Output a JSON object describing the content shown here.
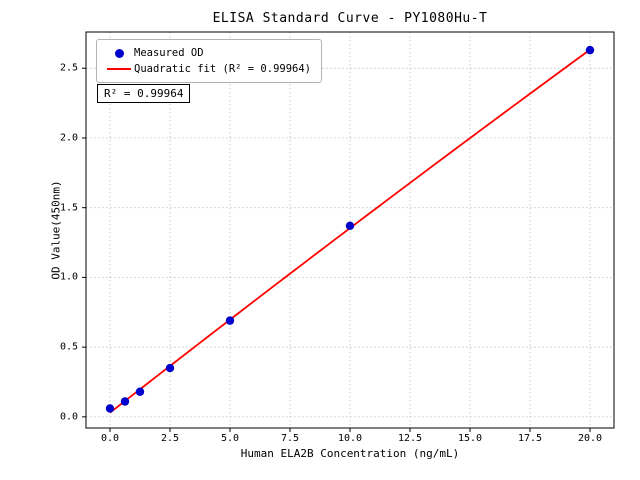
{
  "chart_data": {
    "type": "scatter",
    "title": "ELISA Standard Curve - PY1080Hu-T",
    "xlabel": "Human ELA2B Concentration (ng/mL)",
    "ylabel": "OD Value(450nm)",
    "xlim": [
      -1,
      21
    ],
    "ylim": [
      -0.08,
      2.76
    ],
    "x_ticks": [
      0,
      2.5,
      5,
      7.5,
      10,
      12.5,
      15,
      17.5,
      20
    ],
    "y_ticks": [
      0,
      0.5,
      1,
      1.5,
      2,
      2.5
    ],
    "grid": true,
    "grid_color": "#c4c4c4",
    "axis_color": "#000000",
    "series": [
      {
        "name": "Measured OD",
        "type": "scatter",
        "color": "#0000cd",
        "x": [
          0,
          0.625,
          1.25,
          2.5,
          5,
          10,
          20
        ],
        "y": [
          0.06,
          0.11,
          0.18,
          0.35,
          0.69,
          1.37,
          2.63
        ]
      },
      {
        "name": "Quadratic fit",
        "type": "line",
        "fit": "quadratic",
        "color": "#ff0000",
        "x_range": [
          0,
          20
        ]
      }
    ],
    "legend": {
      "position": "upper-left",
      "entries": [
        {
          "label": "Measured OD",
          "marker": "dot",
          "color": "#0000cd"
        },
        {
          "label": "Quadratic fit (R² = 0.99964)",
          "marker": "line",
          "color": "#ff0000"
        }
      ]
    },
    "annotation": "R² = 0.99964"
  }
}
